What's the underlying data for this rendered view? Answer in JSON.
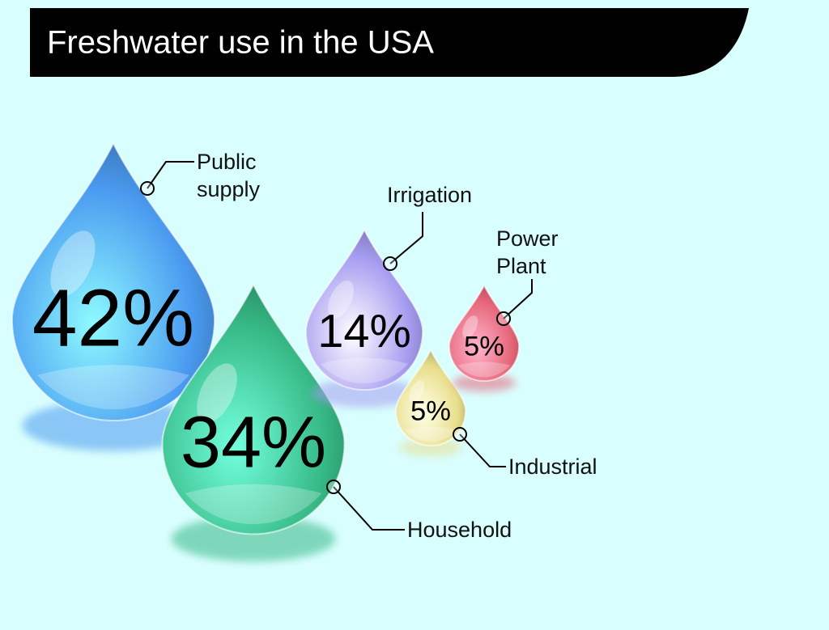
{
  "chart_data": {
    "type": "drop",
    "title": "Freshwater use in the USA",
    "categories": [
      "Public supply",
      "Household",
      "Irrigation",
      "Industrial",
      "Power Plant"
    ],
    "values": [
      42,
      34,
      14,
      5,
      5
    ],
    "value_labels": [
      "42%",
      "34%",
      "14%",
      "5%",
      "5%"
    ],
    "colors": [
      "#4a9af0",
      "#36b985",
      "#a59cf0",
      "#e8de8c",
      "#e66679"
    ]
  }
}
